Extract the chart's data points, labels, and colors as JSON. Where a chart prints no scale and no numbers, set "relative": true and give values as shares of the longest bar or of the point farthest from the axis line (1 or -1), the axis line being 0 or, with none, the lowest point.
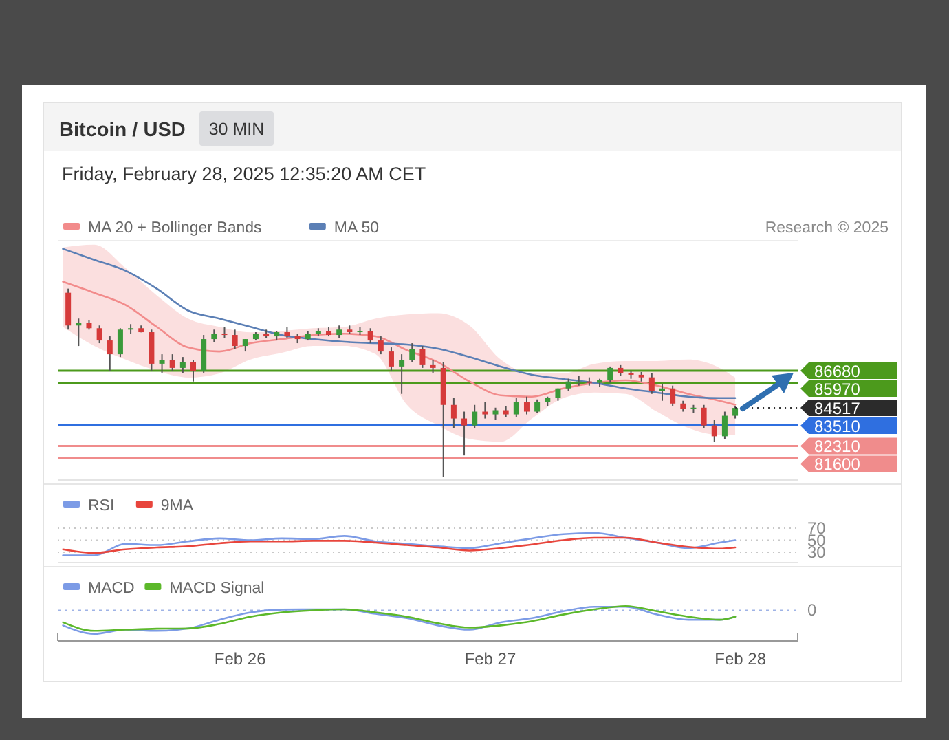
{
  "chart_data": [
    {
      "type": "candlestick",
      "title": "Bitcoin / USD",
      "subtitle": "Friday, February 28, 2025 12:35:20 AM CET",
      "annotations": [
        "30 MIN",
        "Research © 2025",
        {
          "text": "84517",
          "x": "2025-02-27T23:30",
          "y": 84517
        }
      ],
      "x": [
        "2025-02-25T07:30",
        "2025-02-25T08:30",
        "2025-02-25T09:30",
        "2025-02-25T10:30",
        "2025-02-25T11:30",
        "2025-02-25T12:30",
        "2025-02-25T13:30",
        "2025-02-25T14:30",
        "2025-02-25T15:30",
        "2025-02-25T16:30",
        "2025-02-25T17:30",
        "2025-02-25T18:30",
        "2025-02-25T19:30",
        "2025-02-25T20:30",
        "2025-02-25T21:30",
        "2025-02-25T22:30",
        "2025-02-25T23:30",
        "2025-02-26T00:30",
        "2025-02-26T01:30",
        "2025-02-26T02:30",
        "2025-02-26T03:30",
        "2025-02-26T04:30",
        "2025-02-26T05:30",
        "2025-02-26T06:30",
        "2025-02-26T07:30",
        "2025-02-26T08:30",
        "2025-02-26T09:30",
        "2025-02-26T10:30",
        "2025-02-26T11:30",
        "2025-02-26T12:30",
        "2025-02-26T13:30",
        "2025-02-26T14:30",
        "2025-02-26T15:30",
        "2025-02-26T16:30",
        "2025-02-26T17:30",
        "2025-02-26T18:30",
        "2025-02-26T19:30",
        "2025-02-26T20:30",
        "2025-02-26T21:30",
        "2025-02-26T22:30",
        "2025-02-26T23:30",
        "2025-02-27T00:30",
        "2025-02-27T01:30",
        "2025-02-27T02:30",
        "2025-02-27T03:30",
        "2025-02-27T04:30",
        "2025-02-27T05:30",
        "2025-02-27T06:30",
        "2025-02-27T07:30",
        "2025-02-27T08:30",
        "2025-02-27T09:30",
        "2025-02-27T10:30",
        "2025-02-27T11:30",
        "2025-02-27T12:30",
        "2025-02-27T13:30",
        "2025-02-27T14:30",
        "2025-02-27T15:30",
        "2025-02-27T16:30",
        "2025-02-27T17:30",
        "2025-02-27T18:30",
        "2025-02-27T19:30",
        "2025-02-27T20:30",
        "2025-02-27T21:30",
        "2025-02-27T22:30",
        "2025-02-27T23:30"
      ],
      "ohlc": [
        [
          91200,
          91440,
          89060,
          89300
        ],
        [
          89300,
          89700,
          88110,
          89460
        ],
        [
          89460,
          89620,
          89060,
          89140
        ],
        [
          89140,
          89300,
          88270,
          88430
        ],
        [
          88430,
          88670,
          86680,
          87630
        ],
        [
          87630,
          89140,
          87470,
          89060
        ],
        [
          89060,
          89380,
          88830,
          89140
        ],
        [
          89140,
          89300,
          88900,
          88910
        ],
        [
          88910,
          89060,
          86680,
          87080
        ],
        [
          87080,
          87630,
          86520,
          87310
        ],
        [
          87310,
          87630,
          86680,
          86840
        ],
        [
          86840,
          87470,
          86520,
          87160
        ],
        [
          87160,
          87310,
          86050,
          86680
        ],
        [
          86680,
          88750,
          86520,
          88510
        ],
        [
          88510,
          89060,
          88350,
          88830
        ],
        [
          88830,
          89220,
          88590,
          88750
        ],
        [
          88750,
          89060,
          87950,
          88110
        ],
        [
          88110,
          88510,
          87790,
          88510
        ],
        [
          88510,
          88910,
          88430,
          88830
        ],
        [
          88830,
          89060,
          88590,
          88670
        ],
        [
          88670,
          88990,
          88430,
          88910
        ],
        [
          88910,
          89220,
          88590,
          88670
        ],
        [
          88670,
          88830,
          88270,
          88510
        ],
        [
          88510,
          88990,
          88430,
          88830
        ],
        [
          88830,
          89140,
          88670,
          88990
        ],
        [
          88990,
          89220,
          88670,
          88750
        ],
        [
          88750,
          89300,
          88590,
          89060
        ],
        [
          89060,
          89300,
          88830,
          88910
        ],
        [
          88910,
          89220,
          88750,
          88990
        ],
        [
          88990,
          89140,
          88270,
          88430
        ],
        [
          88430,
          88670,
          87630,
          87790
        ],
        [
          87790,
          88030,
          86680,
          86920
        ],
        [
          86920,
          87630,
          85330,
          87310
        ],
        [
          87310,
          88270,
          87160,
          87950
        ],
        [
          87950,
          88110,
          86840,
          87000
        ],
        [
          87000,
          87310,
          86520,
          86840
        ],
        [
          86840,
          87160,
          80490,
          84690
        ],
        [
          84690,
          85090,
          83350,
          83900
        ],
        [
          83900,
          84300,
          81760,
          83500
        ],
        [
          83500,
          84690,
          83350,
          84300
        ],
        [
          84300,
          84850,
          83900,
          84140
        ],
        [
          84140,
          84530,
          83820,
          84380
        ],
        [
          84380,
          84610,
          83980,
          84140
        ],
        [
          84140,
          85090,
          83980,
          84850
        ],
        [
          84850,
          85170,
          84140,
          84300
        ],
        [
          84300,
          85010,
          84220,
          84850
        ],
        [
          84850,
          85170,
          84610,
          85090
        ],
        [
          85090,
          85650,
          84930,
          85650
        ],
        [
          85650,
          86210,
          85490,
          86050
        ],
        [
          86050,
          86360,
          85810,
          86050
        ],
        [
          86050,
          86290,
          85810,
          85970
        ],
        [
          85970,
          86210,
          85730,
          86130
        ],
        [
          86130,
          86920,
          85970,
          86840
        ],
        [
          86840,
          87000,
          86360,
          86520
        ],
        [
          86520,
          86680,
          86210,
          86440
        ],
        [
          86440,
          86600,
          86050,
          86290
        ],
        [
          86290,
          86520,
          85330,
          85490
        ],
        [
          85490,
          85890,
          84930,
          85650
        ],
        [
          85650,
          85810,
          84610,
          84770
        ],
        [
          84770,
          84930,
          84300,
          84460
        ],
        [
          84460,
          84690,
          84220,
          84530
        ],
        [
          84530,
          84690,
          83350,
          83500
        ],
        [
          83500,
          83820,
          82550,
          82870
        ],
        [
          82870,
          84300,
          82710,
          84060
        ],
        [
          84060,
          84610,
          83900,
          84517
        ]
      ],
      "series": [
        {
          "type": "line",
          "name": "MA 20 + Bollinger Bands",
          "color": "#f28b8b",
          "x": [
            "2025-02-25T07:00",
            "2025-02-25T10:00",
            "2025-02-25T13:00",
            "2025-02-25T16:00",
            "2025-02-25T19:00",
            "2025-02-25T22:00",
            "2025-02-26T01:00",
            "2025-02-26T04:00",
            "2025-02-26T07:00",
            "2025-02-26T10:00",
            "2025-02-26T13:00",
            "2025-02-26T16:00",
            "2025-02-26T19:00",
            "2025-02-26T22:00",
            "2025-02-27T01:00",
            "2025-02-27T04:00",
            "2025-02-27T07:00",
            "2025-02-27T10:00",
            "2025-02-27T13:00",
            "2025-02-27T16:00",
            "2025-02-27T19:00",
            "2025-02-27T22:00",
            "2025-02-27T23:30"
          ],
          "values": [
            91840,
            91200,
            90490,
            89220,
            88030,
            87790,
            88270,
            88510,
            88740,
            88820,
            88670,
            87870,
            87160,
            86050,
            85250,
            85170,
            85650,
            85970,
            86120,
            85810,
            85330,
            84930,
            84700
          ],
          "upper": [
            93830,
            93990,
            92640,
            91050,
            89700,
            89220,
            88900,
            88980,
            89140,
            89220,
            89700,
            89940,
            90010,
            89300,
            87320,
            86520,
            86520,
            87080,
            87240,
            87240,
            87320,
            86840,
            86280
          ],
          "lower": [
            89220,
            88110,
            87320,
            86680,
            86280,
            86520,
            87320,
            87710,
            88110,
            88110,
            87630,
            84700,
            83500,
            82710,
            82550,
            83900,
            85090,
            85410,
            85330,
            84300,
            83350,
            82950,
            82950
          ]
        },
        {
          "type": "line",
          "name": "MA 50",
          "color": "#5b7fb5",
          "x": [
            "2025-02-25T07:00",
            "2025-02-25T10:00",
            "2025-02-25T13:00",
            "2025-02-25T16:00",
            "2025-02-25T19:00",
            "2025-02-25T22:00",
            "2025-02-26T01:00",
            "2025-02-26T04:00",
            "2025-02-26T07:00",
            "2025-02-26T10:00",
            "2025-02-26T13:00",
            "2025-02-26T16:00",
            "2025-02-26T19:00",
            "2025-02-26T22:00",
            "2025-02-27T01:00",
            "2025-02-27T04:00",
            "2025-02-27T07:00",
            "2025-02-27T10:00",
            "2025-02-27T13:00",
            "2025-02-27T16:00",
            "2025-02-27T19:00",
            "2025-02-27T22:00",
            "2025-02-27T23:30"
          ],
          "values": [
            93750,
            93110,
            92480,
            91440,
            90170,
            89700,
            89220,
            88740,
            88510,
            88350,
            88270,
            88190,
            87950,
            87470,
            86920,
            86440,
            86200,
            85970,
            85650,
            85410,
            85170,
            85090,
            85090
          ]
        }
      ],
      "ref_lines": [
        {
          "axis": "y",
          "value": 86680,
          "label": "86680",
          "color": "#4c9a1c",
          "line_style": "solid"
        },
        {
          "axis": "y",
          "value": 85970,
          "label": "85970",
          "color": "#4c9a1c",
          "line_style": "solid"
        },
        {
          "axis": "y",
          "value": 83510,
          "label": "83510",
          "color": "#2f6fe0",
          "line_style": "solid"
        },
        {
          "axis": "y",
          "value": 82310,
          "label": "82310",
          "color": "#f08c8c",
          "line_style": "solid"
        },
        {
          "axis": "y",
          "value": 81600,
          "label": "81600",
          "color": "#f08c8c",
          "line_style": "solid"
        }
      ],
      "xlim": [
        "2025-02-25T06:30",
        "2025-02-28T05:30"
      ],
      "ylim": [
        80330,
        94220
      ],
      "tick_labels": false,
      "legend": "top left"
    },
    {
      "type": "line",
      "x": [
        "2025-02-25T07:00",
        "2025-02-25T10:00",
        "2025-02-25T13:00",
        "2025-02-25T16:00",
        "2025-02-25T19:00",
        "2025-02-25T22:00",
        "2025-02-26T01:00",
        "2025-02-26T04:00",
        "2025-02-26T07:00",
        "2025-02-26T10:00",
        "2025-02-26T13:00",
        "2025-02-26T16:00",
        "2025-02-26T19:00",
        "2025-02-26T22:00",
        "2025-02-27T01:00",
        "2025-02-27T04:00",
        "2025-02-27T07:00",
        "2025-02-27T10:00",
        "2025-02-27T13:00",
        "2025-02-27T16:00",
        "2025-02-27T19:00",
        "2025-02-27T22:00",
        "2025-02-27T23:30"
      ],
      "series": [
        {
          "name": "RSI",
          "color": "#7c9be6",
          "values": [
            25,
            25,
            44,
            42,
            48,
            53,
            50,
            53,
            52,
            57,
            48,
            44,
            40,
            37,
            45,
            53,
            60,
            62,
            54,
            46,
            37,
            46,
            50
          ]
        },
        {
          "name": "9MA",
          "color": "#e8453c",
          "values": [
            35,
            29,
            35,
            38,
            40,
            45,
            48,
            48,
            49,
            49,
            46,
            42,
            38,
            33,
            37,
            43,
            50,
            54,
            54,
            46,
            39,
            36,
            38
          ]
        }
      ],
      "xlim": [
        "2025-02-25T06:30",
        "2025-02-28T05:30"
      ],
      "ylim": [
        13,
        70
      ],
      "yticks": [
        70,
        50,
        30
      ],
      "grid": "y",
      "tick_labels": "y",
      "legend": "top left"
    },
    {
      "type": "line",
      "relative": true,
      "x": [
        "2025-02-25T07:00",
        "2025-02-25T10:00",
        "2025-02-25T13:00",
        "2025-02-25T16:00",
        "2025-02-25T19:00",
        "2025-02-25T22:00",
        "2025-02-26T01:00",
        "2025-02-26T04:00",
        "2025-02-26T07:00",
        "2025-02-26T10:00",
        "2025-02-26T13:00",
        "2025-02-26T16:00",
        "2025-02-26T19:00",
        "2025-02-26T22:00",
        "2025-02-27T01:00",
        "2025-02-27T04:00",
        "2025-02-27T07:00",
        "2025-02-27T10:00",
        "2025-02-27T13:00",
        "2025-02-27T16:00",
        "2025-02-27T19:00",
        "2025-02-27T22:00",
        "2025-02-27T23:30"
      ],
      "series": [
        {
          "name": "MACD",
          "color": "#7c9be6",
          "values": [
            -0.64,
            -1,
            -0.82,
            -0.87,
            -0.77,
            -0.4,
            -0.09,
            0.03,
            0.04,
            0.04,
            -0.15,
            -0.33,
            -0.64,
            -0.82,
            -0.51,
            -0.33,
            -0.04,
            0.15,
            0.15,
            -0.18,
            -0.4,
            -0.4,
            -0.27
          ]
        },
        {
          "name": "MACD Signal",
          "color": "#5cb82a",
          "values": [
            -0.51,
            -0.87,
            -0.82,
            -0.78,
            -0.77,
            -0.58,
            -0.27,
            -0.09,
            0,
            0.04,
            -0.09,
            -0.27,
            -0.55,
            -0.73,
            -0.64,
            -0.46,
            -0.18,
            0.04,
            0.18,
            -0.04,
            -0.27,
            -0.4,
            -0.27
          ]
        }
      ],
      "ref_lines": [
        {
          "axis": "y",
          "value": 0,
          "label": "0",
          "color": "#9fb3e6",
          "line_style": "dotted"
        }
      ],
      "xlim": [
        "2025-02-25T06:30",
        "2025-02-28T05:30"
      ],
      "xticks": [
        {
          "value": "2025-02-26T00:00",
          "label": "Feb 26"
        },
        {
          "value": "2025-02-27T00:00",
          "label": "Feb 27"
        },
        {
          "value": "2025-02-28T00:00",
          "label": "Feb 28"
        }
      ],
      "legend": "top left"
    }
  ]
}
